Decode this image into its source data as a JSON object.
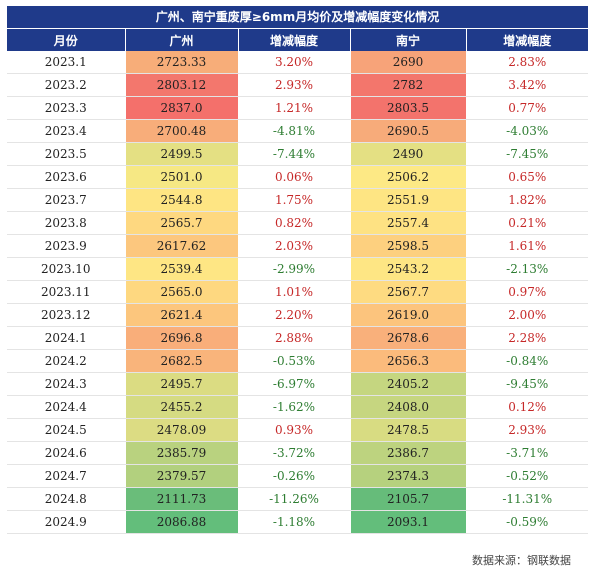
{
  "title": "广州、南宁重废厚≥6mm月均价及增减幅度变化情况",
  "columns": [
    "月份",
    "广州",
    "增减幅度",
    "南宁",
    "增减幅度"
  ],
  "rows": [
    {
      "month": "2023.1",
      "gz": "2723.33",
      "gz_chg": "3.20%",
      "nn": "2690",
      "nn_chg": "2.83%",
      "gz_color": "#f7ad79",
      "nn_color": "#f7a379"
    },
    {
      "month": "2023.2",
      "gz": "2803.12",
      "gz_chg": "2.93%",
      "nn": "2782",
      "nn_chg": "3.42%",
      "gz_color": "#f3776d",
      "nn_color": "#f3766c"
    },
    {
      "month": "2023.3",
      "gz": "2837.0",
      "gz_chg": "1.21%",
      "nn": "2803.5",
      "nn_chg": "0.77%",
      "gz_color": "#f4706b",
      "nn_color": "#f3736c"
    },
    {
      "month": "2023.4",
      "gz": "2700.48",
      "gz_chg": "-4.81%",
      "nn": "2690.5",
      "nn_chg": "-4.03%",
      "gz_color": "#f8ad7a",
      "nn_color": "#f7ab7a"
    },
    {
      "month": "2023.5",
      "gz": "2499.5",
      "gz_chg": "-7.44%",
      "nn": "2490",
      "nn_chg": "-7.45%",
      "gz_color": "#e4e083",
      "nn_color": "#e4e083"
    },
    {
      "month": "2023.6",
      "gz": "2501.0",
      "gz_chg": "0.06%",
      "nn": "2506.2",
      "nn_chg": "0.65%",
      "gz_color": "#f6e884",
      "nn_color": "#fde985"
    },
    {
      "month": "2023.7",
      "gz": "2544.8",
      "gz_chg": "1.75%",
      "nn": "2551.9",
      "nn_chg": "1.82%",
      "gz_color": "#fee583",
      "nn_color": "#fee583"
    },
    {
      "month": "2023.8",
      "gz": "2565.7",
      "gz_chg": "0.82%",
      "nn": "2557.4",
      "nn_chg": "0.21%",
      "gz_color": "#fed880",
      "nn_color": "#fee283"
    },
    {
      "month": "2023.9",
      "gz": "2617.62",
      "gz_chg": "2.03%",
      "nn": "2598.5",
      "nn_chg": "1.61%",
      "gz_color": "#fcc77e",
      "nn_color": "#fdd07f"
    },
    {
      "month": "2023.10",
      "gz": "2539.4",
      "gz_chg": "-2.99%",
      "nn": "2543.2",
      "nn_chg": "-2.13%",
      "gz_color": "#fee684",
      "nn_color": "#fee684"
    },
    {
      "month": "2023.11",
      "gz": "2565.0",
      "gz_chg": "1.01%",
      "nn": "2567.7",
      "nn_chg": "0.97%",
      "gz_color": "#fed880",
      "nn_color": "#fedb81"
    },
    {
      "month": "2023.12",
      "gz": "2621.4",
      "gz_chg": "2.20%",
      "nn": "2619.0",
      "nn_chg": "2.00%",
      "gz_color": "#fcc67d",
      "nn_color": "#fcc47d"
    },
    {
      "month": "2024.1",
      "gz": "2696.8",
      "gz_chg": "2.88%",
      "nn": "2678.6",
      "nn_chg": "2.28%",
      "gz_color": "#f9ae7a",
      "nn_color": "#f9b07b"
    },
    {
      "month": "2024.2",
      "gz": "2682.5",
      "gz_chg": "-0.53%",
      "nn": "2656.3",
      "nn_chg": "-0.84%",
      "gz_color": "#f9b47b",
      "nn_color": "#fbbb7c"
    },
    {
      "month": "2024.3",
      "gz": "2495.7",
      "gz_chg": "-6.97%",
      "nn": "2405.2",
      "nn_chg": "-9.45%",
      "gz_color": "#dbdc82",
      "nn_color": "#c5d680"
    },
    {
      "month": "2024.4",
      "gz": "2455.2",
      "gz_chg": "-1.62%",
      "nn": "2408.0",
      "nn_chg": "0.12%",
      "gz_color": "#d5db82",
      "nn_color": "#c6d680"
    },
    {
      "month": "2024.5",
      "gz": "2478.09",
      "gz_chg": "0.93%",
      "nn": "2478.5",
      "nn_chg": "2.93%",
      "gz_color": "#dcdc83",
      "nn_color": "#d8dc82"
    },
    {
      "month": "2024.6",
      "gz": "2385.79",
      "gz_chg": "-3.72%",
      "nn": "2386.7",
      "nn_chg": "-3.71%",
      "gz_color": "#b9d27f",
      "nn_color": "#bdd37f"
    },
    {
      "month": "2024.7",
      "gz": "2379.57",
      "gz_chg": "-0.26%",
      "nn": "2374.3",
      "nn_chg": "-0.52%",
      "gz_color": "#b2d07e",
      "nn_color": "#b6d17e"
    },
    {
      "month": "2024.8",
      "gz": "2111.73",
      "gz_chg": "-11.26%",
      "nn": "2105.7",
      "nn_chg": "-11.31%",
      "gz_color": "#6abd7a",
      "nn_color": "#66bc7a"
    },
    {
      "month": "2024.9",
      "gz": "2086.88",
      "gz_chg": "-1.18%",
      "nn": "2093.1",
      "nn_chg": "-0.59%",
      "gz_color": "#63be7b",
      "nn_color": "#63be7b"
    }
  ],
  "colors": {
    "header_bg": "#1f3a8a",
    "up_text": "#c62828",
    "down_text": "#2e7d32"
  },
  "source": "数据来源：钢联数据"
}
